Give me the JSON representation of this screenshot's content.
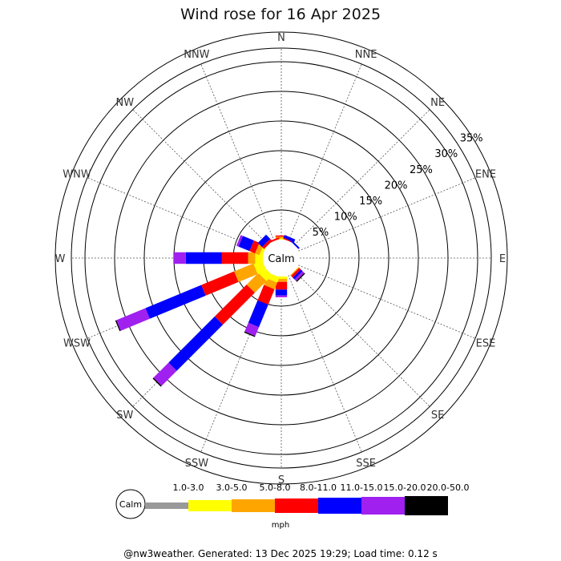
{
  "title": "Wind rose for 16 Apr 2025",
  "footer": "@nw3weather. Generated: 13 Dec 2025 19:29; Load time: 0.12 s",
  "calm_label": "Calm",
  "unit": "mph",
  "chart_data": {
    "type": "wind-rose",
    "title": "Wind rose for 16 Apr 2025",
    "directions": [
      "N",
      "NNE",
      "NE",
      "ENE",
      "E",
      "ESE",
      "SE",
      "SSE",
      "S",
      "SSW",
      "SW",
      "WSW",
      "W",
      "WNW",
      "NW",
      "NNW"
    ],
    "radial_ticks": [
      "5%",
      "10%",
      "15%",
      "20%",
      "25%",
      "30%",
      "35%"
    ],
    "radial_tick_values": [
      5,
      10,
      15,
      20,
      25,
      30,
      35
    ],
    "calm_percent": 0.7,
    "speed_bins": [
      {
        "label": "1.0-3.0",
        "color": "#999999"
      },
      {
        "label": "3.0-5.0",
        "color": "#ffff00"
      },
      {
        "label": "5.0-8.0",
        "color": "#ffa500"
      },
      {
        "label": "8.0-11.0",
        "color": "#ff0000"
      },
      {
        "label": "11.0-15.0",
        "color": "#0000ff"
      },
      {
        "label": "15.0-20.0",
        "color": "#a020f0"
      },
      {
        "label": "20.0-50.0",
        "color": "#000000"
      }
    ],
    "frequencies": {
      "N": [
        0.0,
        0.2,
        0.3,
        0.2,
        0.0,
        0.0,
        0.0
      ],
      "NNE": [
        0.0,
        0.0,
        0.0,
        0.2,
        0.5,
        0.0,
        0.0
      ],
      "NE": [
        0.0,
        0.0,
        0.0,
        0.0,
        0.3,
        0.0,
        0.0
      ],
      "ENE": [
        0.0,
        0.0,
        0.0,
        0.0,
        0.0,
        0.0,
        0.0
      ],
      "E": [
        0.0,
        0.0,
        0.0,
        0.0,
        0.0,
        0.0,
        0.0
      ],
      "ESE": [
        0.0,
        0.0,
        0.0,
        0.0,
        0.0,
        0.0,
        0.0
      ],
      "SE": [
        0.0,
        0.0,
        0.2,
        0.4,
        0.4,
        0.4,
        0.2
      ],
      "SSE": [
        0.0,
        0.0,
        0.0,
        0.0,
        0.0,
        0.0,
        0.0
      ],
      "S": [
        0.0,
        0.4,
        0.5,
        1.3,
        1.0,
        0.3,
        0.0
      ],
      "SSW": [
        0.0,
        1.0,
        1.2,
        2.8,
        4.1,
        1.6,
        0.2
      ],
      "SW": [
        0.0,
        1.4,
        2.8,
        7.6,
        11.0,
        3.6,
        0.2
      ],
      "WSW": [
        0.0,
        1.6,
        3.5,
        6.0,
        10.2,
        5.3,
        0.2
      ],
      "W": [
        0.0,
        1.3,
        1.2,
        4.4,
        6.1,
        2.1,
        0.0
      ],
      "WNW": [
        0.0,
        0.5,
        0.8,
        1.0,
        2.0,
        0.4,
        0.0
      ],
      "NW": [
        0.0,
        0.0,
        0.0,
        0.5,
        1.0,
        0.0,
        0.0
      ],
      "NNW": [
        0.0,
        0.0,
        0.0,
        0.3,
        0.0,
        0.0,
        0.0
      ]
    }
  }
}
